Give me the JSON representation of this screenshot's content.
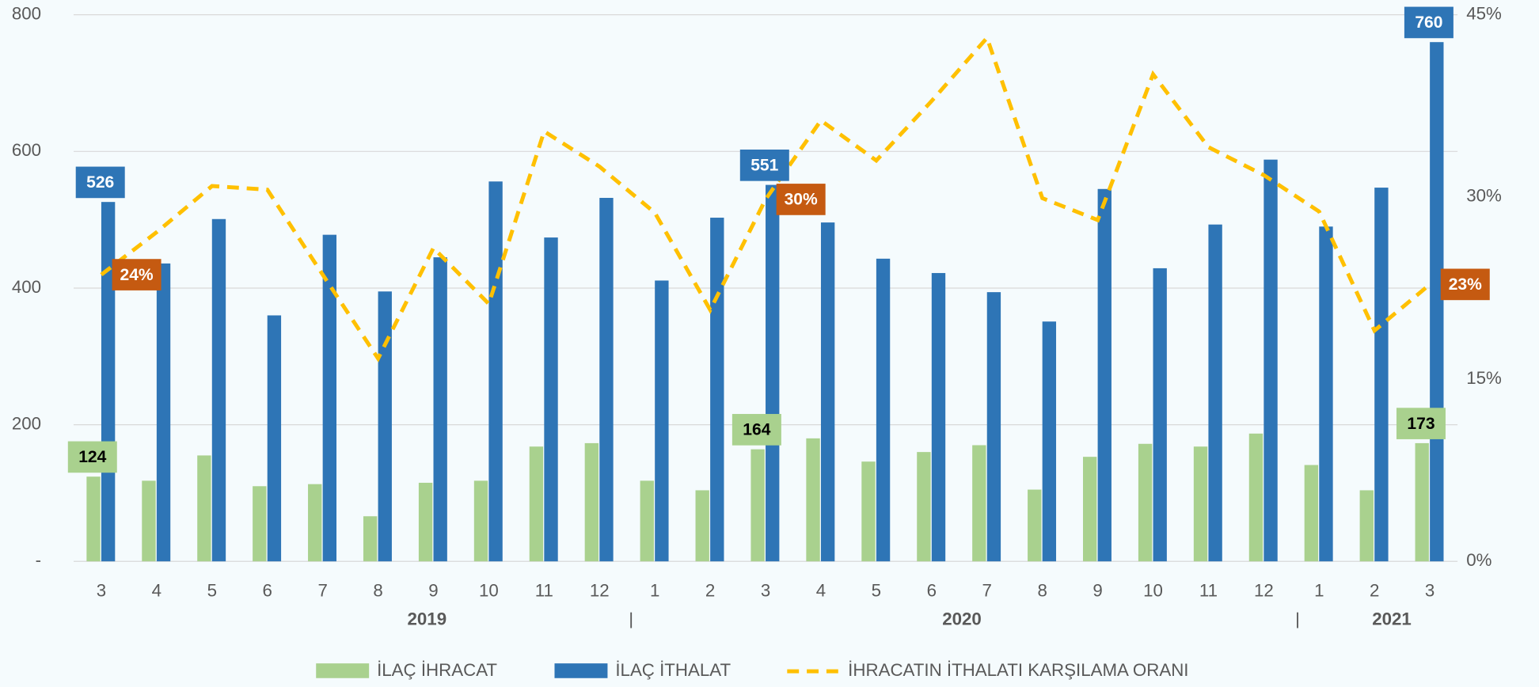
{
  "chart_data": {
    "type": "bar_line",
    "categories": [
      "3",
      "4",
      "5",
      "6",
      "7",
      "8",
      "9",
      "10",
      "11",
      "12",
      "1",
      "2",
      "3",
      "4",
      "5",
      "6",
      "7",
      "8",
      "9",
      "10",
      "11",
      "12",
      "1",
      "2",
      "3"
    ],
    "year_labels": [
      "2019",
      "2020",
      "2021"
    ],
    "ylim": [
      0,
      800
    ],
    "yticks": [
      {
        "value": 0,
        "label": "-"
      },
      200,
      400,
      600,
      800
    ],
    "y2lim": [
      0,
      45
    ],
    "y2ticks": [
      {
        "value": 0,
        "label": "0%"
      },
      {
        "value": 15,
        "label": "15%"
      },
      {
        "value": 30,
        "label": "30%"
      },
      {
        "value": 45,
        "label": "45%"
      }
    ],
    "grid": true,
    "legend": "bottom",
    "series": [
      {
        "name": "İLAÇ İHRACAT",
        "type": "bar",
        "color": "#a9d18e",
        "values": [
          124,
          118,
          155,
          110,
          113,
          66,
          115,
          118,
          168,
          173,
          118,
          104,
          164,
          180,
          146,
          160,
          170,
          105,
          153,
          172,
          168,
          187,
          141,
          104,
          173
        ],
        "value_labels": [
          "124",
          null,
          null,
          null,
          null,
          null,
          null,
          null,
          null,
          null,
          null,
          null,
          "164",
          null,
          null,
          null,
          null,
          null,
          null,
          null,
          null,
          null,
          null,
          null,
          "173"
        ]
      },
      {
        "name": "İLAÇ İTHALAT",
        "type": "bar",
        "color": "#2e75b6",
        "values": [
          526,
          436,
          501,
          360,
          478,
          395,
          445,
          556,
          474,
          532,
          411,
          503,
          551,
          496,
          443,
          422,
          394,
          351,
          545,
          429,
          493,
          588,
          490,
          547,
          760
        ],
        "value_labels": [
          "526",
          null,
          null,
          null,
          null,
          null,
          null,
          null,
          null,
          null,
          null,
          null,
          "551",
          null,
          null,
          null,
          null,
          null,
          null,
          null,
          null,
          null,
          null,
          null,
          "760"
        ]
      },
      {
        "name": "İHRACATIN İTHALATI KARŞILAMA ORANI",
        "type": "line",
        "axis": "y2",
        "color": "#ffc000",
        "values": [
          23.6,
          27.1,
          30.9,
          30.6,
          23.6,
          16.7,
          25.8,
          21.2,
          35.4,
          32.5,
          28.7,
          20.7,
          29.8,
          36.3,
          33.0,
          37.9,
          43.1,
          29.9,
          28.1,
          40.1,
          34.1,
          31.8,
          28.8,
          19.0,
          22.8
        ],
        "value_labels": [
          "24%",
          null,
          null,
          null,
          null,
          null,
          null,
          null,
          null,
          null,
          null,
          null,
          "30%",
          null,
          null,
          null,
          null,
          null,
          null,
          null,
          null,
          null,
          null,
          null,
          "23%"
        ]
      }
    ]
  }
}
